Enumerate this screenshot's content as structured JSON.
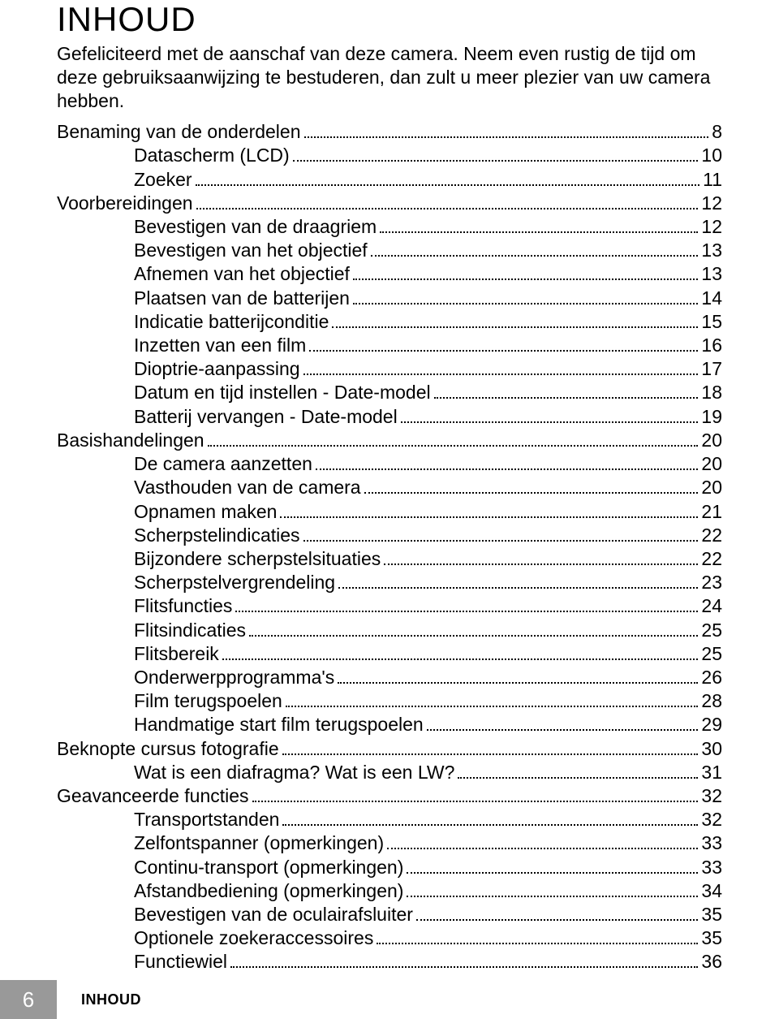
{
  "title": "INHOUD",
  "intro": "Gefeliciteerd met de aanschaf van deze camera. Neem even rustig de tijd om deze gebruiksaanwijzing te bestuderen, dan zult u meer plezier van uw camera hebben.",
  "toc": [
    {
      "label": "Benaming van de onderdelen",
      "page": "8",
      "indent": 0
    },
    {
      "label": "Datascherm (LCD)",
      "page": "10",
      "indent": 1
    },
    {
      "label": "Zoeker",
      "page": "11",
      "indent": 1
    },
    {
      "label": "Voorbereidingen",
      "page": "12",
      "indent": 0
    },
    {
      "label": "Bevestigen van de draagriem",
      "page": "12",
      "indent": 1
    },
    {
      "label": "Bevestigen van het objectief",
      "page": "13",
      "indent": 1
    },
    {
      "label": "Afnemen van het objectief",
      "page": "13",
      "indent": 1
    },
    {
      "label": "Plaatsen van de batterijen",
      "page": "14",
      "indent": 1
    },
    {
      "label": "Indicatie batterijconditie",
      "page": "15",
      "indent": 1
    },
    {
      "label": "Inzetten van een film",
      "page": "16",
      "indent": 1
    },
    {
      "label": "Dioptrie-aanpassing",
      "page": "17",
      "indent": 1
    },
    {
      "label": "Datum en tijd instellen - Date-model",
      "page": "18",
      "indent": 1
    },
    {
      "label": "Batterij vervangen - Date-model",
      "page": "19",
      "indent": 1
    },
    {
      "label": "Basishandelingen",
      "page": "20",
      "indent": 0
    },
    {
      "label": "De camera aanzetten",
      "page": "20",
      "indent": 1
    },
    {
      "label": "Vasthouden van de camera",
      "page": "20",
      "indent": 1
    },
    {
      "label": "Opnamen maken",
      "page": "21",
      "indent": 1
    },
    {
      "label": "Scherpstelindicaties",
      "page": "22",
      "indent": 1
    },
    {
      "label": "Bijzondere scherpstelsituaties",
      "page": "22",
      "indent": 1
    },
    {
      "label": "Scherpstelvergrendeling",
      "page": "23",
      "indent": 1
    },
    {
      "label": "Flitsfuncties",
      "page": "24",
      "indent": 1
    },
    {
      "label": "Flitsindicaties",
      "page": "25",
      "indent": 1
    },
    {
      "label": "Flitsbereik",
      "page": "25",
      "indent": 1
    },
    {
      "label": "Onderwerpprogramma's",
      "page": "26",
      "indent": 1
    },
    {
      "label": "Film terugspoelen",
      "page": "28",
      "indent": 1
    },
    {
      "label": "Handmatige start film terugspoelen",
      "page": "29",
      "indent": 1
    },
    {
      "label": "Beknopte cursus fotografie",
      "page": "30",
      "indent": 0
    },
    {
      "label": "Wat is een diafragma? Wat is een LW?",
      "page": "31",
      "indent": 1
    },
    {
      "label": "Geavanceerde functies",
      "page": "32",
      "indent": 0
    },
    {
      "label": "Transportstanden",
      "page": "32",
      "indent": 1
    },
    {
      "label": "Zelfontspanner (opmerkingen)",
      "page": "33",
      "indent": 1
    },
    {
      "label": "Continu-transport (opmerkingen)",
      "page": "33",
      "indent": 1
    },
    {
      "label": "Afstandbediening (opmerkingen)",
      "page": "34",
      "indent": 1
    },
    {
      "label": "Bevestigen van de oculairafsluiter",
      "page": "35",
      "indent": 1
    },
    {
      "label": "Optionele zoekeraccessoires",
      "page": "35",
      "indent": 1
    },
    {
      "label": "Functiewiel",
      "page": "36",
      "indent": 1
    }
  ],
  "footer": {
    "pagenum": "6",
    "label": "INHOUD"
  },
  "colors": {
    "text": "#000000",
    "background": "#ffffff",
    "footer_bg": "#999999",
    "footer_text": "#ffffff"
  },
  "typography": {
    "title_fontsize": 42,
    "body_fontsize": 23,
    "footer_pagenum_fontsize": 26,
    "footer_label_fontsize": 18
  }
}
